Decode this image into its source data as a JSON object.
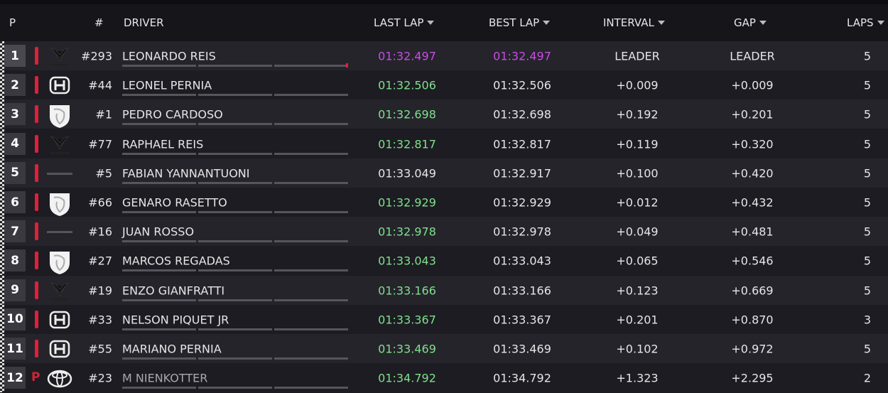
{
  "header": {
    "position": "P",
    "number": "#",
    "driver": "DRIVER",
    "last_lap": "LAST LAP",
    "best_lap": "BEST LAP",
    "interval": "INTERVAL",
    "gap": "GAP",
    "laps": "LAPS"
  },
  "table": {
    "rows": [
      {
        "pos": 1,
        "number": "#293",
        "driver": "LEONARDO REIS",
        "last_lap": "01:32.497",
        "last_lap_color": "#c94be6",
        "best_lap": "01:32.497",
        "best_lap_color": "#c94be6",
        "interval": "LEADER",
        "gap": "LEADER",
        "laps": 5
      },
      {
        "pos": 2,
        "number": "#44",
        "driver": "LEONEL PERNIA",
        "last_lap": "01:32.506",
        "last_lap_color": "#7fe08c",
        "best_lap": "01:32.506",
        "interval": "+0.009",
        "gap": "+0.009",
        "laps": 5
      },
      {
        "pos": 3,
        "number": "#1",
        "driver": "PEDRO CARDOSO",
        "last_lap": "01:32.698",
        "last_lap_color": "#7fe08c",
        "best_lap": "01:32.698",
        "interval": "+0.192",
        "gap": "+0.201",
        "laps": 5
      },
      {
        "pos": 4,
        "number": "#77",
        "driver": "RAPHAEL REIS",
        "last_lap": "01:32.817",
        "last_lap_color": "#7fe08c",
        "best_lap": "01:32.817",
        "interval": "+0.119",
        "gap": "+0.320",
        "laps": 5
      },
      {
        "pos": 5,
        "number": "#5",
        "driver": "FABIAN YANNANTUONI",
        "last_lap": "01:33.049",
        "last_lap_color": "#e6e6e8",
        "best_lap": "01:32.917",
        "interval": "+0.100",
        "gap": "+0.420",
        "laps": 5
      },
      {
        "pos": 6,
        "number": "#66",
        "driver": "GENARO RASETTO",
        "last_lap": "01:32.929",
        "last_lap_color": "#7fe08c",
        "best_lap": "01:32.929",
        "interval": "+0.012",
        "gap": "+0.432",
        "laps": 5
      },
      {
        "pos": 7,
        "number": "#16",
        "driver": "JUAN ROSSO",
        "last_lap": "01:32.978",
        "last_lap_color": "#7fe08c",
        "best_lap": "01:32.978",
        "interval": "+0.049",
        "gap": "+0.481",
        "laps": 5
      },
      {
        "pos": 8,
        "number": "#27",
        "driver": "MARCOS REGADAS",
        "last_lap": "01:33.043",
        "last_lap_color": "#7fe08c",
        "best_lap": "01:33.043",
        "interval": "+0.065",
        "gap": "+0.546",
        "laps": 5
      },
      {
        "pos": 9,
        "number": "#19",
        "driver": "ENZO GIANFRATTI",
        "last_lap": "01:33.166",
        "last_lap_color": "#7fe08c",
        "best_lap": "01:33.166",
        "interval": "+0.123",
        "gap": "+0.669",
        "laps": 5
      },
      {
        "pos": 10,
        "number": "#33",
        "driver": "NELSON PIQUET JR",
        "last_lap": "01:33.367",
        "last_lap_color": "#7fe08c",
        "best_lap": "01:33.367",
        "interval": "+0.201",
        "gap": "+0.870",
        "laps": 3
      },
      {
        "pos": 11,
        "number": "#55",
        "driver": "MARIANO PERNIA",
        "last_lap": "01:33.469",
        "last_lap_color": "#7fe08c",
        "best_lap": "01:33.469",
        "interval": "+0.102",
        "gap": "+0.972",
        "laps": 5
      },
      {
        "pos": 12,
        "pit": "P",
        "number": "#23",
        "driver": "M NIENKOTTER",
        "last_lap": "01:34.792",
        "last_lap_color": "#7fe08c",
        "best_lap": "01:34.792",
        "interval": "+1.323",
        "gap": "+2.295",
        "laps": 2
      }
    ]
  }
}
